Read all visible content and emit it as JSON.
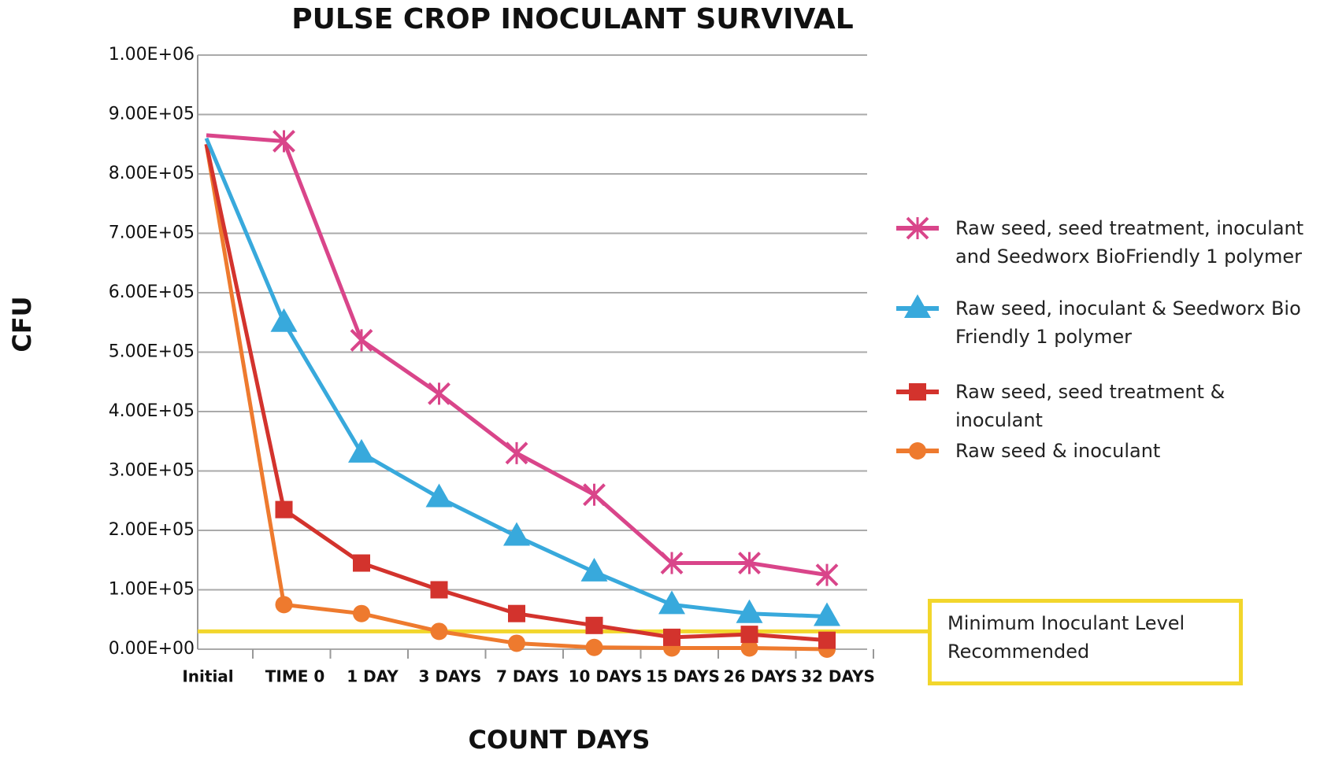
{
  "chart_data": {
    "type": "line",
    "title": "PULSE CROP INOCULANT SURVIVAL",
    "x_label": "COUNT DAYS",
    "y_label": "CFU",
    "categories": [
      "Initial",
      "TIME 0",
      "1 DAY",
      "3 DAYS",
      "7 DAYS",
      "10 DAYS",
      "15 DAYS",
      "26 DAYS",
      "32 DAYS"
    ],
    "series": [
      {
        "name": "Raw seed, seed treatment, inoculant and Seedworx BioFriendly 1 polymer",
        "color": "#d9458a",
        "marker": "x",
        "values": [
          865000,
          855000,
          520000,
          430000,
          330000,
          260000,
          145000,
          145000,
          125000
        ]
      },
      {
        "name": "Raw seed, inoculant & Seedworx Bio Friendly 1 polymer",
        "color": "#38a9dc",
        "marker": "triangle",
        "values": [
          860000,
          550000,
          330000,
          255000,
          190000,
          130000,
          75000,
          60000,
          55000
        ]
      },
      {
        "name": "Raw seed, seed treatment & inoculant",
        "color": "#d3332d",
        "marker": "square",
        "values": [
          850000,
          235000,
          145000,
          100000,
          60000,
          40000,
          20000,
          25000,
          15000
        ]
      },
      {
        "name": "Raw seed & inoculant",
        "color": "#ee7a2e",
        "marker": "circle",
        "values": [
          850000,
          75000,
          60000,
          30000,
          10000,
          3000,
          2000,
          2000,
          0
        ]
      }
    ],
    "threshold": {
      "value": 30000,
      "label": "Minimum Inoculant Level Recommended",
      "color": "#f2d62c"
    },
    "ylim": [
      0,
      1000000
    ],
    "yticks": [
      {
        "value": 0,
        "label": "0.00E+00"
      },
      {
        "value": 100000,
        "label": "1.00E+05"
      },
      {
        "value": 200000,
        "label": "2.00E+05"
      },
      {
        "value": 300000,
        "label": "3.00E+05"
      },
      {
        "value": 400000,
        "label": "4.00E+05"
      },
      {
        "value": 500000,
        "label": "5.00E+05"
      },
      {
        "value": 600000,
        "label": "6.00E+05"
      },
      {
        "value": 700000,
        "label": "7.00E+05"
      },
      {
        "value": 800000,
        "label": "8.00E+05"
      },
      {
        "value": 900000,
        "label": "9.00E+05"
      },
      {
        "value": 1000000,
        "label": "1.00E+06"
      }
    ],
    "grid": true,
    "legend": "right"
  }
}
